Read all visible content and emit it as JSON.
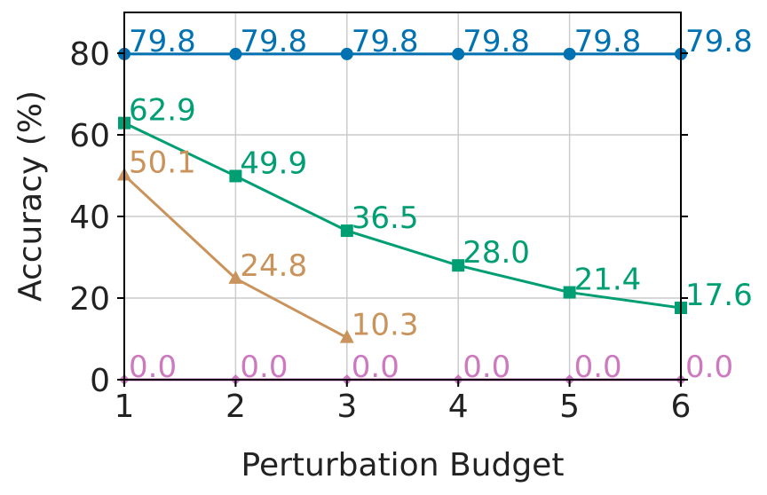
{
  "chart_data": {
    "type": "line",
    "xlabel": "Perturbation Budget",
    "ylabel": "Accuracy (%)",
    "x": [
      1,
      2,
      3,
      4,
      5,
      6
    ],
    "xlim": [
      1,
      6
    ],
    "ylim": [
      0,
      90
    ],
    "x_ticks": [
      "1",
      "2",
      "3",
      "4",
      "5",
      "6"
    ],
    "y_ticks": [
      "0",
      "20",
      "40",
      "60",
      "80"
    ],
    "grid": true,
    "series": [
      {
        "color": "#0072B2",
        "marker": "circle",
        "x": [
          1,
          2,
          3,
          4,
          5,
          6
        ],
        "values": [
          79.8,
          79.8,
          79.8,
          79.8,
          79.8,
          79.8
        ],
        "labels": [
          "79.8",
          "79.8",
          "79.8",
          "79.8",
          "79.8",
          "79.8"
        ]
      },
      {
        "color": "#009E73",
        "marker": "square",
        "x": [
          1,
          2,
          3,
          4,
          5,
          6
        ],
        "values": [
          62.9,
          49.9,
          36.5,
          28.0,
          21.4,
          17.6
        ],
        "labels": [
          "62.9",
          "49.9",
          "36.5",
          "28.0",
          "21.4",
          "17.6"
        ]
      },
      {
        "color": "#C9935B",
        "marker": "triangle",
        "x": [
          1,
          2,
          3
        ],
        "values": [
          50.1,
          24.8,
          10.3
        ],
        "labels": [
          "50.1",
          "24.8",
          "10.3"
        ]
      },
      {
        "color": "#CC79C0",
        "marker": "diamond",
        "x": [
          1,
          2,
          3,
          4,
          5,
          6
        ],
        "values": [
          0.0,
          0.0,
          0.0,
          0.0,
          0.0,
          0.0
        ],
        "labels": [
          "0.0",
          "0.0",
          "0.0",
          "0.0",
          "0.0",
          "0.0"
        ]
      }
    ]
  }
}
